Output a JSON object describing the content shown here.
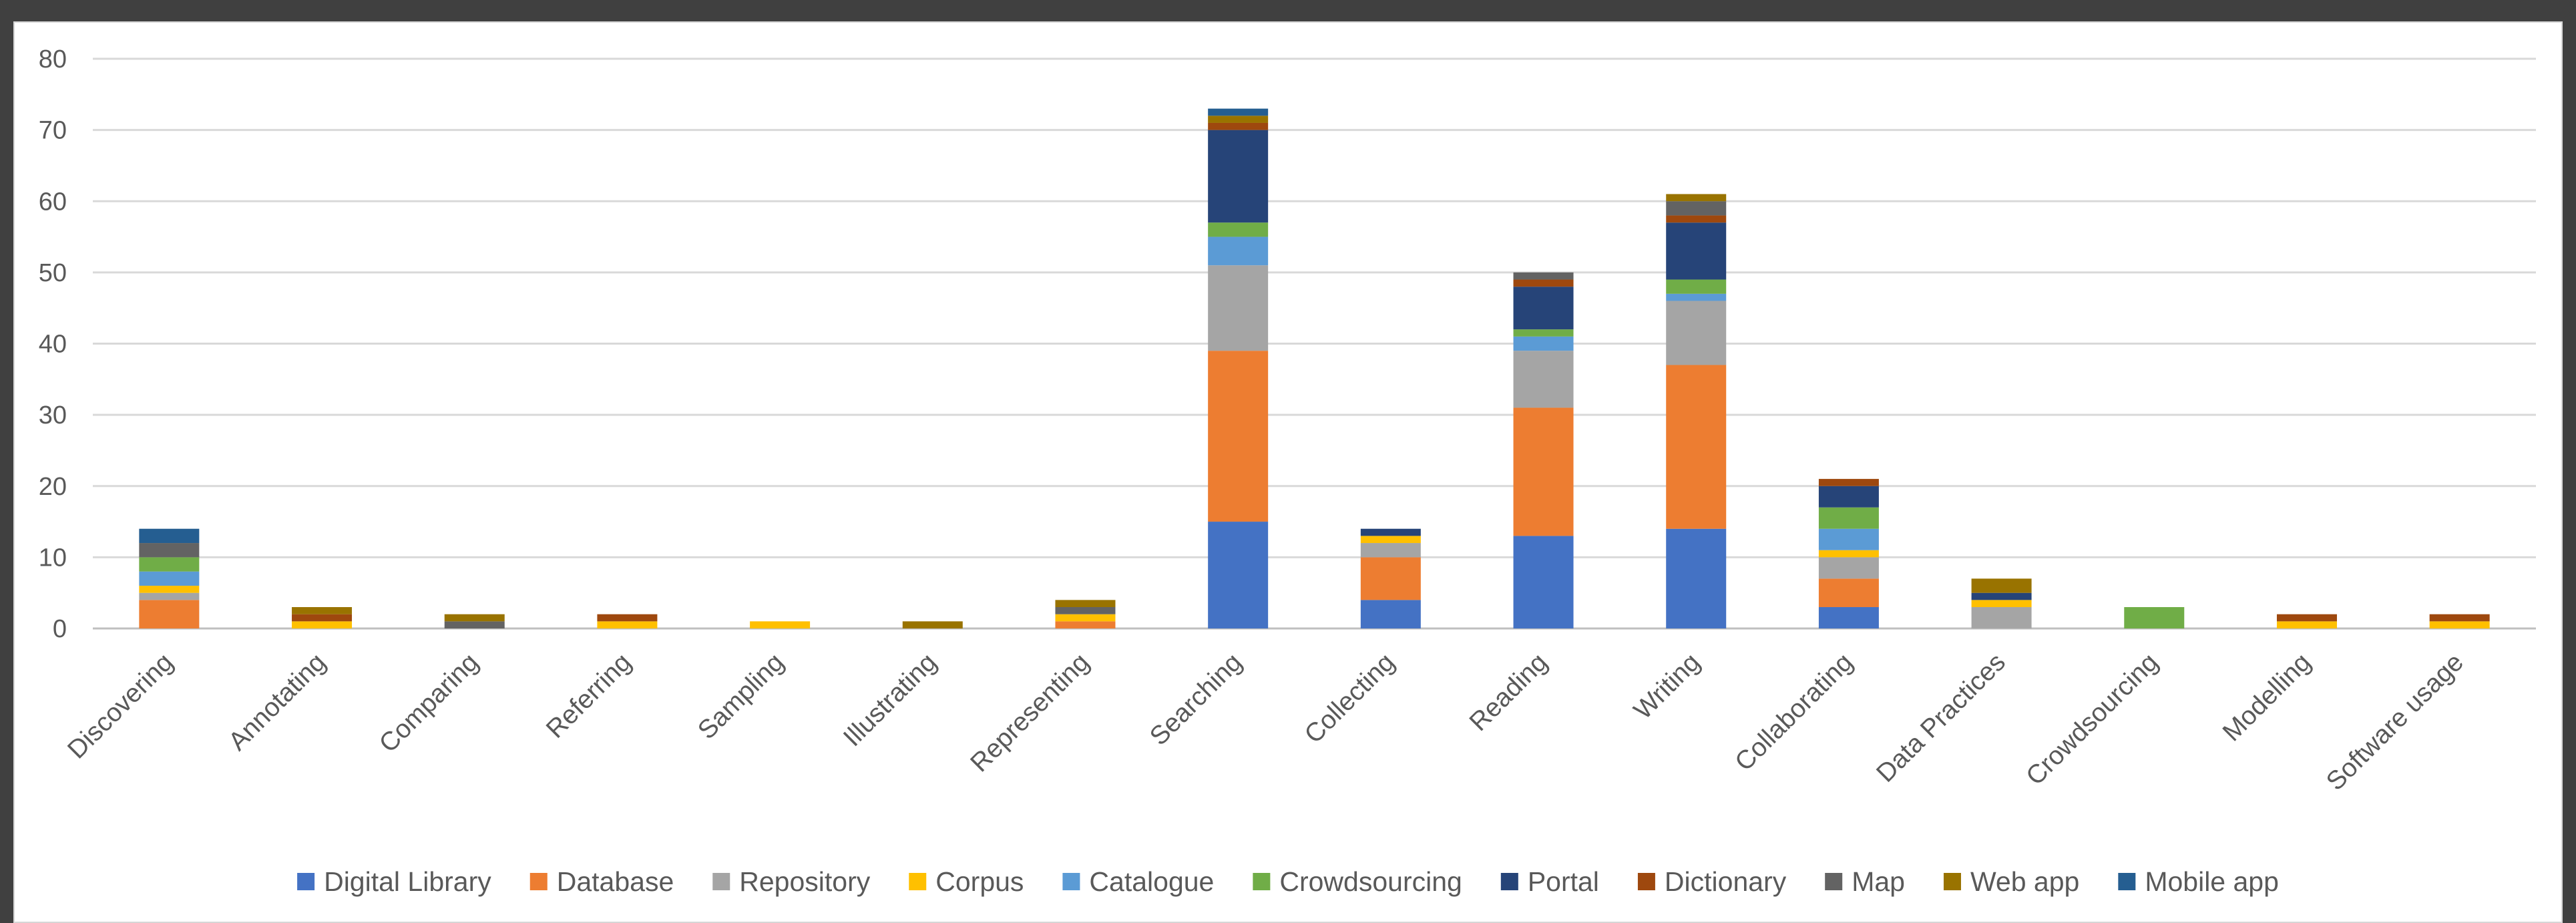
{
  "chart_data": {
    "type": "bar",
    "stacked": true,
    "categories": [
      "Discovering",
      "Annotating",
      "Comparing",
      "Referring",
      "Sampling",
      "Illustrating",
      "Representing",
      "Searching",
      "Collecting",
      "Reading",
      "Writing",
      "Collaborating",
      "Data Practices",
      "Crowdsourcing",
      "Modelling",
      "Software usage"
    ],
    "series": [
      {
        "name": "Digital Library",
        "color": "#4472C4",
        "values": [
          0,
          0,
          0,
          0,
          0,
          0,
          0,
          15,
          4,
          13,
          14,
          3,
          0,
          0,
          0,
          0
        ]
      },
      {
        "name": "Database",
        "color": "#ED7D31",
        "values": [
          4,
          0,
          0,
          0,
          0,
          0,
          1,
          24,
          6,
          18,
          23,
          4,
          0,
          0,
          0,
          0
        ]
      },
      {
        "name": "Repository",
        "color": "#A5A5A5",
        "values": [
          1,
          0,
          0,
          0,
          0,
          0,
          0,
          12,
          2,
          8,
          9,
          3,
          3,
          0,
          0,
          0
        ]
      },
      {
        "name": "Corpus",
        "color": "#FFC000",
        "values": [
          1,
          1,
          0,
          1,
          1,
          0,
          1,
          0,
          1,
          0,
          0,
          1,
          1,
          0,
          1,
          1
        ]
      },
      {
        "name": "Catalogue",
        "color": "#5B9BD5",
        "values": [
          2,
          0,
          0,
          0,
          0,
          0,
          0,
          4,
          0,
          2,
          1,
          3,
          0,
          0,
          0,
          0
        ]
      },
      {
        "name": "Crowdsourcing",
        "color": "#70AD47",
        "values": [
          2,
          0,
          0,
          0,
          0,
          0,
          0,
          2,
          0,
          1,
          2,
          3,
          0,
          3,
          0,
          0
        ]
      },
      {
        "name": "Portal",
        "color": "#264478",
        "values": [
          0,
          0,
          0,
          0,
          0,
          0,
          0,
          13,
          1,
          6,
          8,
          3,
          1,
          0,
          0,
          0
        ]
      },
      {
        "name": "Dictionary",
        "color": "#9E480E",
        "values": [
          0,
          1,
          0,
          1,
          0,
          0,
          0,
          1,
          0,
          1,
          1,
          1,
          0,
          0,
          1,
          1
        ]
      },
      {
        "name": "Map",
        "color": "#636363",
        "values": [
          2,
          0,
          1,
          0,
          0,
          0,
          1,
          0,
          0,
          1,
          2,
          0,
          0,
          0,
          0,
          0
        ]
      },
      {
        "name": "Web app",
        "color": "#997300",
        "values": [
          0,
          1,
          1,
          0,
          0,
          1,
          1,
          1,
          0,
          0,
          1,
          0,
          2,
          0,
          0,
          0
        ]
      },
      {
        "name": "Mobile app",
        "color": "#255E91",
        "values": [
          2,
          0,
          0,
          0,
          0,
          0,
          0,
          1,
          0,
          0,
          0,
          0,
          0,
          0,
          0,
          0
        ]
      }
    ],
    "y_ticks": [
      "0",
      "10",
      "20",
      "30",
      "40",
      "50",
      "60",
      "70",
      "80"
    ],
    "ylim": [
      0,
      80
    ],
    "grid": true,
    "legend_position": "bottom",
    "title": "",
    "xlabel": "",
    "ylabel": ""
  }
}
